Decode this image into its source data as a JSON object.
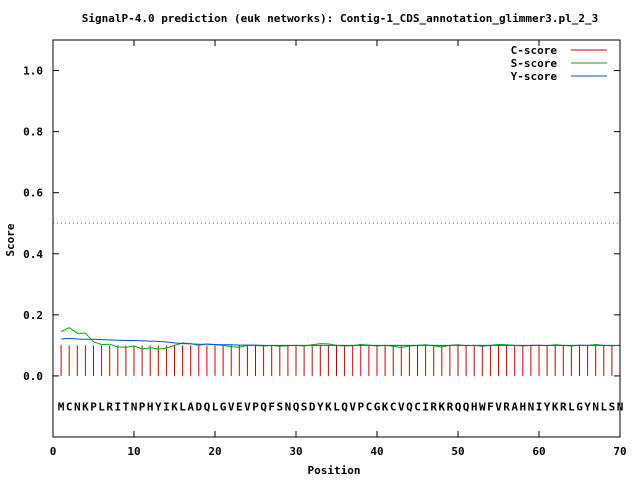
{
  "chart_data": {
    "type": "line",
    "title": "SignalP-4.0 prediction (euk networks): Contig-1_CDS_annotation_glimmer3.pl_2_3",
    "xlabel": "Position",
    "ylabel": "Score",
    "xlim": [
      0,
      70
    ],
    "ylim": [
      -0.2,
      1.1
    ],
    "x_ticks": [
      "0",
      "10",
      "20",
      "30",
      "40",
      "50",
      "60",
      "70"
    ],
    "y_ticks": [
      "0.0",
      "0.2",
      "0.4",
      "0.6",
      "0.8",
      "1.0"
    ],
    "y_tick_values": [
      0.0,
      0.2,
      0.4,
      0.6,
      0.8,
      1.0
    ],
    "x_tick_values": [
      0,
      10,
      20,
      30,
      40,
      50,
      60,
      70
    ],
    "legend": {
      "placement": "top-right"
    },
    "sequence": "MCNKPLRITNPHYIKLADQLGVEVPQFSNQSDYKLQVPCGKCVQCIRKRQQHWFVRAHNIYKRLGYNLSN",
    "sequence_y": -0.1,
    "cutoff": {
      "value": 0.5,
      "color": "#ff00ff"
    },
    "series": [
      {
        "name": "C-score",
        "color": "#cc0000",
        "style": "impulses",
        "values": [
          0.101,
          0.1,
          0.1,
          0.1,
          0.1,
          0.1,
          0.1,
          0.1,
          0.1,
          0.1,
          0.1,
          0.1,
          0.1,
          0.1,
          0.1,
          0.1,
          0.1,
          0.1,
          0.1,
          0.1,
          0.1,
          0.1,
          0.1,
          0.1,
          0.1,
          0.1,
          0.1,
          0.1,
          0.1,
          0.1,
          0.1,
          0.1,
          0.1,
          0.1,
          0.1,
          0.1,
          0.1,
          0.1,
          0.1,
          0.1,
          0.1,
          0.1,
          0.1,
          0.1,
          0.1,
          0.1,
          0.1,
          0.1,
          0.1,
          0.1,
          0.1,
          0.1,
          0.1,
          0.1,
          0.1,
          0.1,
          0.1,
          0.1,
          0.1,
          0.1,
          0.1,
          0.1,
          0.1,
          0.1,
          0.1,
          0.1,
          0.1,
          0.1,
          0.1,
          0.1
        ]
      },
      {
        "name": "S-score",
        "color": "#00aa00",
        "style": "line",
        "values": [
          0.145,
          0.158,
          0.14,
          0.14,
          0.112,
          0.103,
          0.104,
          0.095,
          0.094,
          0.098,
          0.088,
          0.092,
          0.088,
          0.091,
          0.1,
          0.108,
          0.106,
          0.1,
          0.105,
          0.102,
          0.1,
          0.096,
          0.094,
          0.1,
          0.1,
          0.098,
          0.1,
          0.097,
          0.099,
          0.1,
          0.098,
          0.102,
          0.106,
          0.105,
          0.1,
          0.098,
          0.099,
          0.103,
          0.101,
          0.098,
          0.1,
          0.097,
          0.093,
          0.098,
          0.1,
          0.102,
          0.099,
          0.095,
          0.1,
          0.102,
          0.099,
          0.1,
          0.097,
          0.1,
          0.103,
          0.102,
          0.1,
          0.098,
          0.1,
          0.101,
          0.099,
          0.102,
          0.1,
          0.098,
          0.101,
          0.1,
          0.103,
          0.1,
          0.099,
          0.1
        ]
      },
      {
        "name": "Y-score",
        "color": "#0055cc",
        "style": "line",
        "values": [
          0.121,
          0.123,
          0.121,
          0.12,
          0.12,
          0.119,
          0.118,
          0.117,
          0.116,
          0.116,
          0.115,
          0.114,
          0.113,
          0.111,
          0.108,
          0.106,
          0.105,
          0.104,
          0.104,
          0.103,
          0.102,
          0.102,
          0.101,
          0.101,
          0.101,
          0.1,
          0.1,
          0.1,
          0.1,
          0.1,
          0.1,
          0.1,
          0.1,
          0.1,
          0.1,
          0.1,
          0.1,
          0.1,
          0.1,
          0.1,
          0.1,
          0.1,
          0.1,
          0.1,
          0.1,
          0.1,
          0.1,
          0.1,
          0.1,
          0.1,
          0.1,
          0.1,
          0.1,
          0.1,
          0.1,
          0.1,
          0.1,
          0.1,
          0.1,
          0.1,
          0.1,
          0.1,
          0.1,
          0.1,
          0.1,
          0.1,
          0.1,
          0.1,
          0.1,
          0.1
        ]
      }
    ]
  }
}
